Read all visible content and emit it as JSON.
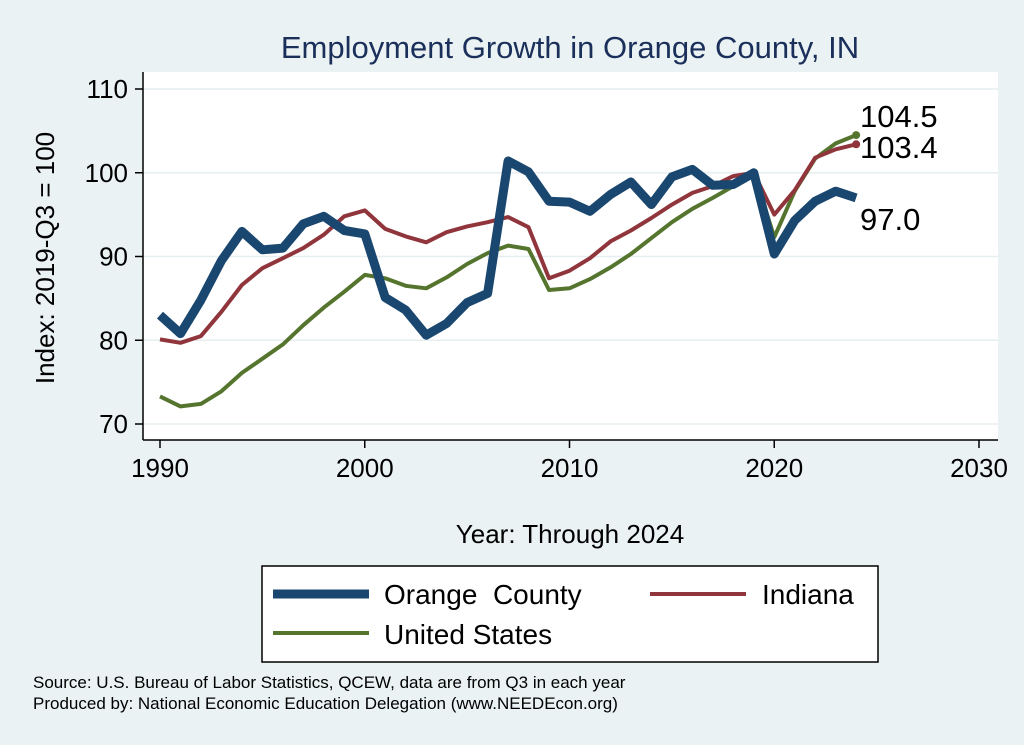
{
  "chart_data": {
    "type": "line",
    "title": "Employment Growth in Orange County, IN",
    "xlabel": "Year: Through 2024",
    "ylabel": "Index: 2019-Q3 = 100",
    "xlim": [
      1990,
      2030
    ],
    "ylim": [
      70,
      110
    ],
    "x_ticks": [
      "1990",
      "2000",
      "2010",
      "2020",
      "2030"
    ],
    "y_ticks": [
      "70",
      "80",
      "90",
      "100",
      "110"
    ],
    "grid": true,
    "legend_position": "bottom",
    "x": [
      1990,
      1991,
      1992,
      1993,
      1994,
      1995,
      1996,
      1997,
      1998,
      1999,
      2000,
      2001,
      2002,
      2003,
      2004,
      2005,
      2006,
      2007,
      2008,
      2009,
      2010,
      2011,
      2012,
      2013,
      2014,
      2015,
      2016,
      2017,
      2018,
      2019,
      2020,
      2021,
      2022,
      2023,
      2024
    ],
    "series": [
      {
        "name": "Orange  County",
        "color": "#1a476f",
        "width": 9,
        "end_label": "97.0",
        "values": [
          83.0,
          80.8,
          84.8,
          89.5,
          93.0,
          90.8,
          91.0,
          93.9,
          94.8,
          93.1,
          92.7,
          85.1,
          83.6,
          80.6,
          82.0,
          84.5,
          85.6,
          101.4,
          100.1,
          96.6,
          96.5,
          95.4,
          97.4,
          98.9,
          96.2,
          99.5,
          100.4,
          98.5,
          98.6,
          100.0,
          90.3,
          94.3,
          96.6,
          97.8,
          97.0
        ]
      },
      {
        "name": "Indiana",
        "color": "#90353b",
        "width": 4,
        "end_label": "103.4",
        "values": [
          80.1,
          79.7,
          80.5,
          83.4,
          86.6,
          88.6,
          89.8,
          91.0,
          92.6,
          94.8,
          95.5,
          93.3,
          92.4,
          91.7,
          92.9,
          93.6,
          94.1,
          94.7,
          93.5,
          87.4,
          88.3,
          89.8,
          91.8,
          93.1,
          94.6,
          96.2,
          97.6,
          98.4,
          99.6,
          100.0,
          95.0,
          97.9,
          101.8,
          102.8,
          103.4
        ]
      },
      {
        "name": "United States",
        "color": "#55752f",
        "width": 4,
        "end_label": "104.5",
        "values": [
          73.3,
          72.1,
          72.4,
          73.9,
          76.1,
          77.8,
          79.5,
          81.8,
          83.9,
          85.8,
          87.8,
          87.4,
          86.5,
          86.2,
          87.5,
          89.1,
          90.4,
          91.3,
          90.9,
          86.0,
          86.2,
          87.3,
          88.7,
          90.3,
          92.2,
          94.1,
          95.7,
          97.0,
          98.4,
          100.0,
          92.3,
          97.8,
          101.7,
          103.5,
          104.5
        ]
      }
    ],
    "notes": [
      "Source: U.S. Bureau of Labor Statistics, QCEW, data are from Q3 in each year",
      "Produced by: National Economic Education Delegation (www.NEEDEcon.org)"
    ]
  }
}
